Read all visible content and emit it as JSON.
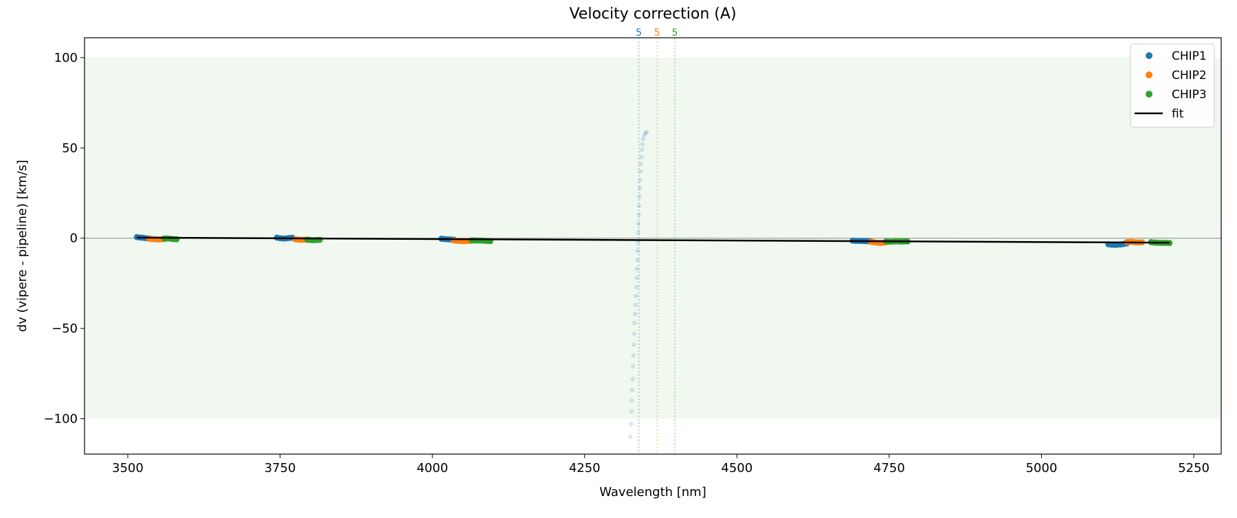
{
  "chart_data": {
    "type": "scatter",
    "title": "Velocity correction (A)",
    "xlabel": "Wavelength [nm]",
    "ylabel": "dv (vipere - pipeline) [km/s]",
    "xlim": [
      3429,
      5295
    ],
    "ylim": [
      -119.6,
      111
    ],
    "xticks": [
      3500,
      3750,
      4000,
      4250,
      4500,
      4750,
      5000,
      5250
    ],
    "yticks": [
      -100,
      -50,
      0,
      50,
      100
    ],
    "ytick_labels": [
      "−100",
      "−50",
      "0",
      "50",
      "100"
    ],
    "band": [
      -100,
      100
    ],
    "band_color": "#2ca02c",
    "legend_position": "top-right",
    "series": [
      {
        "name": "CHIP1",
        "color": "#1f77b4",
        "points": [
          [
            3515,
            0.6
          ],
          [
            3520,
            0.4
          ],
          [
            3525,
            0.2
          ],
          [
            3530,
            0
          ],
          [
            3535,
            -0.1
          ],
          [
            3745,
            0.3
          ],
          [
            3750,
            0
          ],
          [
            3755,
            -0.2
          ],
          [
            3760,
            -0.1
          ],
          [
            3765,
            0.1
          ],
          [
            3770,
            0.2
          ],
          [
            4015,
            -0.3
          ],
          [
            4020,
            -0.5
          ],
          [
            4025,
            -0.6
          ],
          [
            4030,
            -0.7
          ],
          [
            4035,
            -0.8
          ],
          [
            4690,
            -1.4
          ],
          [
            4695,
            -1.5
          ],
          [
            4700,
            -1.5
          ],
          [
            4705,
            -1.6
          ],
          [
            4710,
            -1.6
          ],
          [
            4715,
            -1.7
          ],
          [
            4720,
            -1.8
          ],
          [
            5110,
            -3.4
          ],
          [
            5115,
            -3.6
          ],
          [
            5120,
            -3.7
          ],
          [
            5125,
            -3.6
          ],
          [
            5130,
            -3.5
          ],
          [
            5135,
            -3.2
          ],
          [
            5140,
            -2.9
          ]
        ]
      },
      {
        "name": "CHIP2",
        "color": "#ff7f0e",
        "points": [
          [
            3535,
            -0.3
          ],
          [
            3540,
            -0.5
          ],
          [
            3545,
            -0.6
          ],
          [
            3550,
            -0.7
          ],
          [
            3555,
            -0.6
          ],
          [
            3560,
            -0.5
          ],
          [
            3775,
            -0.6
          ],
          [
            3780,
            -0.8
          ],
          [
            3785,
            -0.9
          ],
          [
            3790,
            -0.8
          ],
          [
            3795,
            -0.9
          ],
          [
            4035,
            -1.2
          ],
          [
            4040,
            -1.4
          ],
          [
            4045,
            -1.5
          ],
          [
            4050,
            -1.6
          ],
          [
            4055,
            -1.6
          ],
          [
            4060,
            -1.5
          ],
          [
            4065,
            -1.4
          ],
          [
            4720,
            -2.0
          ],
          [
            4725,
            -2.3
          ],
          [
            4730,
            -2.5
          ],
          [
            4735,
            -2.6
          ],
          [
            4740,
            -2.5
          ],
          [
            4745,
            -2.3
          ],
          [
            5140,
            -2.2
          ],
          [
            5145,
            -2.0
          ],
          [
            5150,
            -2.1
          ],
          [
            5155,
            -2.3
          ],
          [
            5160,
            -2.4
          ],
          [
            5165,
            -2.3
          ]
        ]
      },
      {
        "name": "CHIP3",
        "color": "#2ca02c",
        "points": [
          [
            3560,
            -0.2
          ],
          [
            3565,
            -0.1
          ],
          [
            3570,
            -0.3
          ],
          [
            3575,
            -0.5
          ],
          [
            3580,
            -0.6
          ],
          [
            3795,
            -0.8
          ],
          [
            3800,
            -1.0
          ],
          [
            3805,
            -1.1
          ],
          [
            3810,
            -1.0
          ],
          [
            3815,
            -0.9
          ],
          [
            4065,
            -1.2
          ],
          [
            4070,
            -1.2
          ],
          [
            4075,
            -1.3
          ],
          [
            4080,
            -1.3
          ],
          [
            4085,
            -1.4
          ],
          [
            4090,
            -1.5
          ],
          [
            4095,
            -1.6
          ],
          [
            4745,
            -1.8
          ],
          [
            4750,
            -1.9
          ],
          [
            4755,
            -1.9
          ],
          [
            4760,
            -1.8
          ],
          [
            4765,
            -1.8
          ],
          [
            4770,
            -1.9
          ],
          [
            4775,
            -1.8
          ],
          [
            4780,
            -1.8
          ],
          [
            5180,
            -2.2
          ],
          [
            5185,
            -2.4
          ],
          [
            5190,
            -2.5
          ],
          [
            5195,
            -2.6
          ],
          [
            5200,
            -2.6
          ],
          [
            5205,
            -2.6
          ],
          [
            5210,
            -2.7
          ]
        ]
      }
    ],
    "rejected": {
      "color": "#1f77b4",
      "points": [
        [
          4325,
          -110
        ],
        [
          4326,
          -103
        ],
        [
          4327,
          -96
        ],
        [
          4327.5,
          -90
        ],
        [
          4328,
          -84
        ],
        [
          4329,
          -78
        ],
        [
          4329.5,
          -71
        ],
        [
          4330,
          -65
        ],
        [
          4331,
          -59
        ],
        [
          4331.5,
          -53
        ],
        [
          4332,
          -47
        ],
        [
          4333,
          -42
        ],
        [
          4333.5,
          -37
        ],
        [
          4334,
          -32
        ],
        [
          4335,
          -27
        ],
        [
          4335.5,
          -22
        ],
        [
          4336,
          -17
        ],
        [
          4336.5,
          -12
        ],
        [
          4337,
          -7
        ],
        [
          4337.5,
          -2
        ],
        [
          4338,
          3
        ],
        [
          4338.5,
          8
        ],
        [
          4339,
          13
        ],
        [
          4339.5,
          18
        ],
        [
          4340,
          23
        ],
        [
          4340.5,
          28
        ],
        [
          4341,
          32
        ],
        [
          4342,
          37
        ],
        [
          4342.5,
          41
        ],
        [
          4343,
          45
        ],
        [
          4344,
          49
        ],
        [
          4345,
          52
        ],
        [
          4346,
          55
        ],
        [
          4348,
          57
        ],
        [
          4350,
          58.3
        ],
        [
          4352,
          58.8
        ]
      ]
    },
    "fit": {
      "name": "fit",
      "color": "#000000",
      "points": [
        [
          3515,
          0.3
        ],
        [
          5210,
          -2.5
        ]
      ]
    },
    "vlines": [
      {
        "x": 4339,
        "label": "5",
        "color": "#1f77b4"
      },
      {
        "x": 4369,
        "label": "5",
        "color": "#ff7f0e"
      },
      {
        "x": 4398,
        "label": "5",
        "color": "#2ca02c"
      }
    ]
  }
}
